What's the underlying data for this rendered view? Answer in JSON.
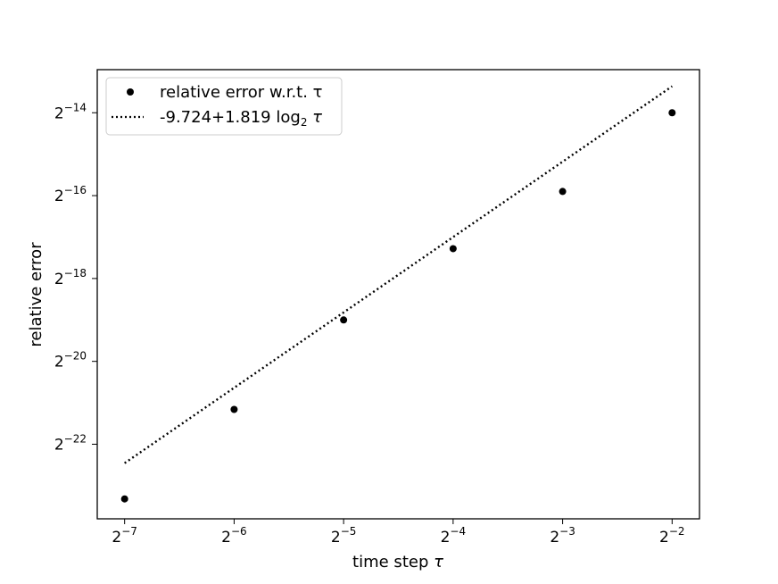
{
  "chart_data": {
    "type": "scatter",
    "title": "",
    "xlabel": "time step",
    "xlabel_symbol": "τ",
    "ylabel": "relative error",
    "x_scale": "log2",
    "y_scale": "log2",
    "xlim_log2": [
      -7.25,
      -1.75
    ],
    "ylim_log2": [
      -23.8,
      -12.96
    ],
    "x_ticks": [
      {
        "base": "2",
        "exp": "−7",
        "value": -7
      },
      {
        "base": "2",
        "exp": "−6",
        "value": -6
      },
      {
        "base": "2",
        "exp": "−5",
        "value": -5
      },
      {
        "base": "2",
        "exp": "−4",
        "value": -4
      },
      {
        "base": "2",
        "exp": "−3",
        "value": -3
      },
      {
        "base": "2",
        "exp": "−2",
        "value": -2
      }
    ],
    "y_ticks": [
      {
        "base": "2",
        "exp": "−14",
        "value": -14
      },
      {
        "base": "2",
        "exp": "−16",
        "value": -16
      },
      {
        "base": "2",
        "exp": "−18",
        "value": -18
      },
      {
        "base": "2",
        "exp": "−20",
        "value": -20
      },
      {
        "base": "2",
        "exp": "−22",
        "value": -22
      }
    ],
    "series": [
      {
        "name": "relative error w.r.t. τ",
        "kind": "scatter",
        "color": "#000000",
        "x_log2": [
          -7,
          -6,
          -5,
          -4,
          -3,
          -2
        ],
        "y_log2": [
          -23.32,
          -21.16,
          -19.0,
          -17.28,
          -15.9,
          -14.0
        ]
      },
      {
        "name": "-9.724+1.819 log",
        "name_subscript": "2",
        "name_suffix": " τ",
        "kind": "line",
        "style": "dotted",
        "color": "#000000",
        "intercept": -9.724,
        "slope": 1.819,
        "x_range_log2": [
          -7,
          -2
        ]
      }
    ],
    "grid": false,
    "legend_position": "upper-left"
  }
}
